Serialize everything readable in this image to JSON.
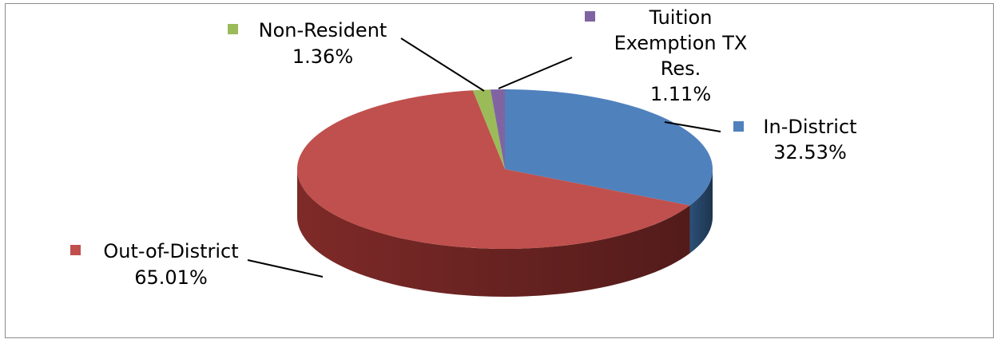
{
  "chart_data": {
    "type": "pie",
    "title": "",
    "slices": [
      {
        "name": "In-District",
        "value": 32.53,
        "label": "32.53%",
        "color": "#4f81bd",
        "side_color": "#2c5078"
      },
      {
        "name": "Out-of-District",
        "value": 65.01,
        "label": "65.01%",
        "color": "#c0504d",
        "side_color": "#7e2a28"
      },
      {
        "name": "Non-Resident",
        "value": 1.36,
        "label": "1.36%",
        "color": "#9bbb59",
        "side_color": "#637a35"
      },
      {
        "name": "Tuition Exemption TX Res.",
        "name_lines": [
          "Tuition",
          "Exemption TX",
          "Res."
        ],
        "value": 1.11,
        "label": "1.11%",
        "color": "#8064a2",
        "side_color": "#4f3c68"
      }
    ],
    "legend": "none",
    "data_labels": "outside with leader lines",
    "style": "3d"
  }
}
